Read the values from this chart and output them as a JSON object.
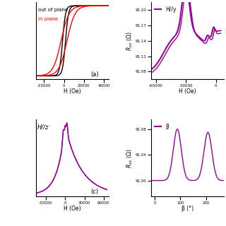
{
  "panel_a": {
    "label_oop": "out of plane",
    "label_ip": "in plane",
    "color_oop": "#000000",
    "color_ip": "#cc0000",
    "xlabel": "H (Oe)",
    "xlim": [
      -28000,
      45000
    ],
    "xticks": [
      -20000,
      0,
      20000,
      40000
    ],
    "panel_label": "(a)"
  },
  "panel_b": {
    "label": "H//y",
    "color": "#990099",
    "xlabel": "H (Oe)",
    "ylabel": "R_xx (Ω)",
    "xlim": [
      -65000,
      8000
    ],
    "xticks": [
      -60000,
      -30000,
      0
    ],
    "ylim": [
      91.065,
      91.215
    ],
    "yticks": [
      91.08,
      91.11,
      91.14,
      91.17,
      91.2
    ]
  },
  "panel_c": {
    "label": "H//z",
    "color": "#990099",
    "xlabel": "H (Oe)",
    "xlim": [
      -45000,
      68000
    ],
    "xticks": [
      -30000,
      0,
      30000,
      60000
    ],
    "panel_label": "(c)"
  },
  "panel_d": {
    "label": "β",
    "color": "#990099",
    "xlabel": "β (°)",
    "ylabel": "R_xx (Ω)",
    "xlim": [
      -15,
      270
    ],
    "xticks": [
      0,
      100,
      200
    ],
    "ylim": [
      90.975,
      91.095
    ],
    "yticks": [
      91.0,
      91.04,
      91.08
    ]
  },
  "purple": "#990099"
}
